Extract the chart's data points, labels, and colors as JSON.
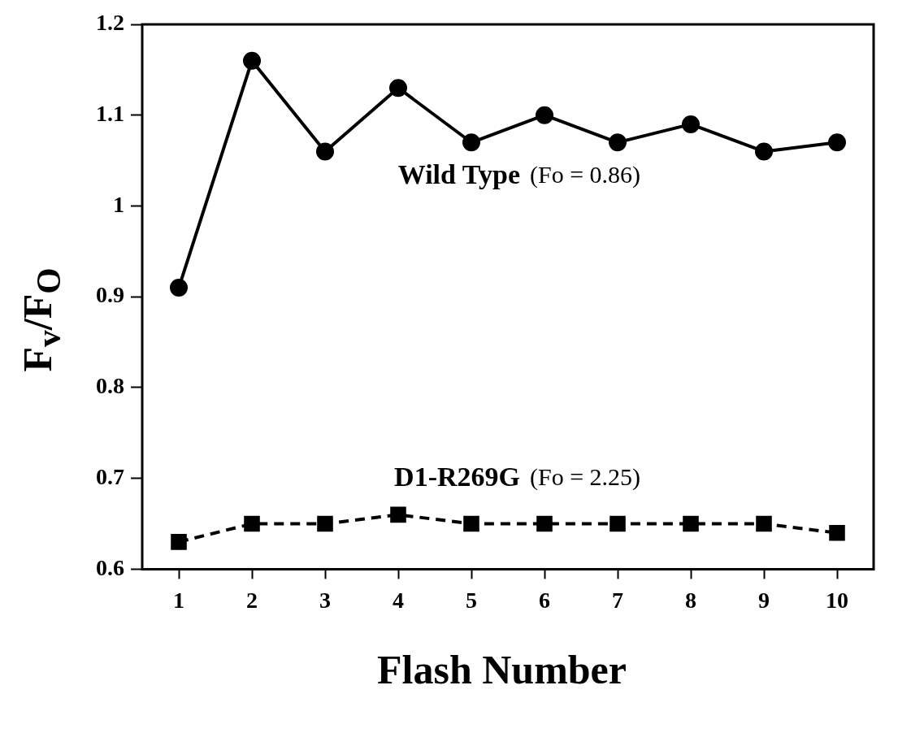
{
  "chart_data": {
    "type": "line",
    "xlabel": "Flash Number",
    "ylabel": "F$_{v}$/F$_{O}$",
    "categories": [
      "1",
      "2",
      "3",
      "4",
      "5",
      "6",
      "7",
      "8",
      "9",
      "10"
    ],
    "series": [
      {
        "name": "Wild Type",
        "color": "#000000",
        "marker": "circle",
        "line_style": "solid",
        "values": [
          0.91,
          1.16,
          1.06,
          1.13,
          1.07,
          1.1,
          1.07,
          1.09,
          1.06,
          1.07
        ]
      },
      {
        "name": "D1-R269G",
        "color": "#000000",
        "marker": "square",
        "line_style": "dashed",
        "values": [
          0.63,
          0.65,
          0.65,
          0.66,
          0.65,
          0.65,
          0.65,
          0.65,
          0.65,
          0.64
        ]
      }
    ],
    "annotations": [
      "(Fo = 0.86)",
      "(Fo = 2.25)"
    ],
    "ylim": [
      0.6,
      1.2
    ],
    "yticks": [
      0.6,
      0.7,
      0.8,
      0.9,
      1,
      1.1,
      1.2
    ],
    "grid": false,
    "legend": false
  }
}
